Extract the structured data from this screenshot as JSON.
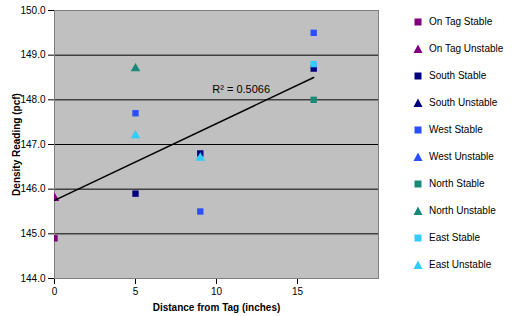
{
  "chart_data": {
    "type": "scatter",
    "xlabel": "Distance from Tag (inches)",
    "ylabel": "Density Reading (pcf)",
    "xlim": [
      0,
      20
    ],
    "xticks": [
      0,
      5,
      10,
      15
    ],
    "ylim": [
      144,
      150
    ],
    "yticks": [
      144,
      145,
      146,
      147,
      148,
      149,
      150
    ],
    "grid": true,
    "legend": "right",
    "series": [
      {
        "name": "On Tag Stable",
        "color": "#800080",
        "marker": "square",
        "x": [
          0
        ],
        "values": [
          144.9
        ]
      },
      {
        "name": "On Tag Unstable",
        "color": "#800080",
        "marker": "triangle",
        "x": [
          0
        ],
        "values": [
          145.8
        ]
      },
      {
        "name": "South Stable",
        "color": "#000080",
        "marker": "square",
        "x": [
          5,
          9,
          16
        ],
        "values": [
          145.9,
          146.8,
          148.7
        ]
      },
      {
        "name": "South Unstable",
        "color": "#000080",
        "marker": "triangle",
        "x": [],
        "values": []
      },
      {
        "name": "West Stable",
        "color": "#2a4fff",
        "marker": "square",
        "x": [
          5,
          9,
          16
        ],
        "values": [
          147.7,
          145.5,
          149.5
        ]
      },
      {
        "name": "West Unstable",
        "color": "#2a4fff",
        "marker": "triangle",
        "x": [],
        "values": []
      },
      {
        "name": "North Stable",
        "color": "#1a8a78",
        "marker": "square",
        "x": [
          16
        ],
        "values": [
          148.0
        ]
      },
      {
        "name": "North Unstable",
        "color": "#1a8a78",
        "marker": "triangle",
        "x": [
          5
        ],
        "values": [
          148.7
        ]
      },
      {
        "name": "East Stable",
        "color": "#33ccff",
        "marker": "square",
        "x": [
          16
        ],
        "values": [
          148.8
        ]
      },
      {
        "name": "East Unstable",
        "color": "#33ccff",
        "marker": "triangle",
        "x": [
          5,
          9
        ],
        "values": [
          147.2,
          146.7
        ]
      }
    ],
    "trendline": {
      "x": [
        0,
        16
      ],
      "values": [
        145.75,
        148.5
      ],
      "color": "#000000",
      "label": "R² = 0.5066"
    }
  }
}
